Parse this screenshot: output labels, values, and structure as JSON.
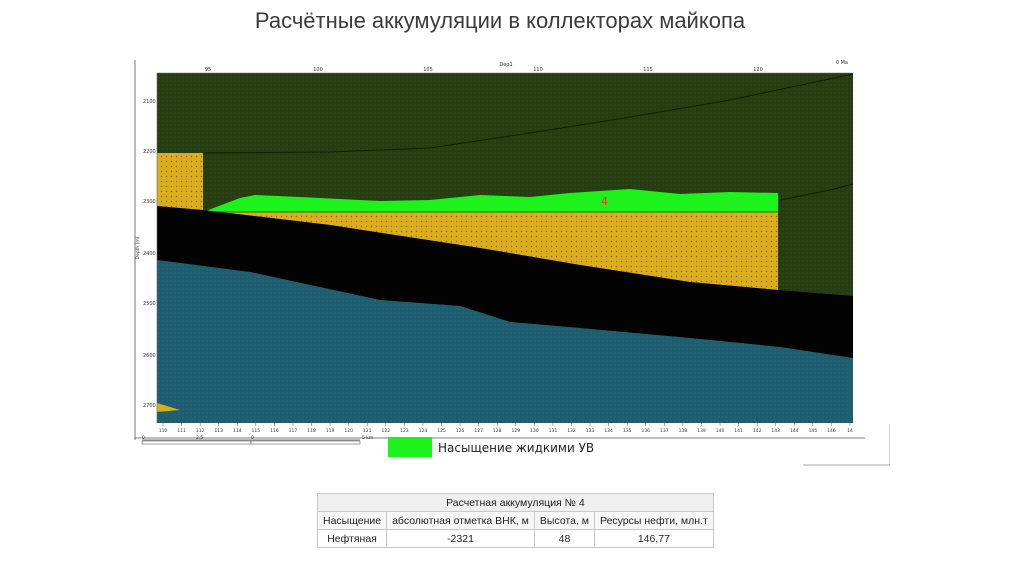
{
  "title": "Расчётные аккумуляции в коллекторах майкопа",
  "section": {
    "top_ticks": [
      "95",
      "100",
      "105",
      "110",
      "115",
      "120"
    ],
    "top_center_label": "Dep1",
    "top_right_label": "0 Ma",
    "depth_ticks": [
      "2100",
      "2200",
      "2300",
      "2400",
      "2500",
      "2600",
      "2700"
    ],
    "depth_axis_label": "Depth (m)",
    "well_ticks": [
      "110",
      "111",
      "112",
      "113",
      "114",
      "115",
      "116",
      "117",
      "118",
      "119",
      "120",
      "121",
      "122",
      "123",
      "124",
      "125",
      "126",
      "127",
      "128",
      "129",
      "130",
      "131",
      "132",
      "133",
      "134",
      "135",
      "136",
      "137",
      "138",
      "139",
      "140",
      "141",
      "142",
      "143",
      "144",
      "145",
      "146",
      "14"
    ],
    "accumulation_label": "4",
    "scale_labels": [
      "0",
      "2.5",
      "5 km"
    ],
    "legend_label": "Насыщение жидкими УВ",
    "colors": {
      "overburden": "#263d12",
      "reservoir": "#d9ad1e",
      "seal": "#030303",
      "basement": "#1e5d6e",
      "hydrocarbon": "#1df21d",
      "label_red": "#e23b2e"
    }
  },
  "table": {
    "title": "Расчетная аккумуляция № 4",
    "headers": [
      "Насыщение",
      "абсолютная отметка ВНК, м",
      "Высота, м",
      "Ресурсы нефти, млн.т"
    ],
    "rows": [
      [
        "Нефтяная",
        "-2321",
        "48",
        "146,77"
      ]
    ]
  }
}
